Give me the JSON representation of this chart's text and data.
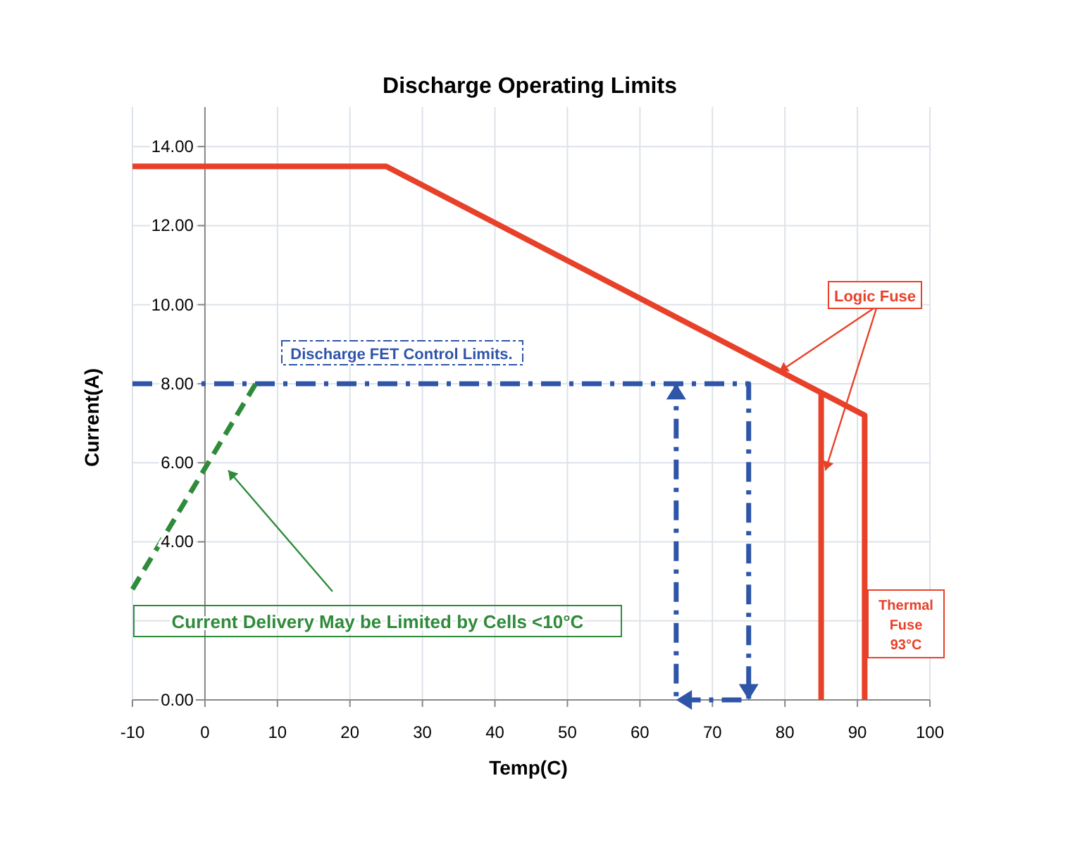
{
  "chart_data": {
    "type": "line",
    "title": "Discharge Operating Limits",
    "xlabel": "Temp(C)",
    "ylabel": "Current(A)",
    "xlim": [
      -10,
      100
    ],
    "xticks": [
      -10,
      0,
      10,
      20,
      30,
      40,
      50,
      60,
      70,
      80,
      90,
      100
    ],
    "ylim": [
      0,
      15
    ],
    "yticks": [
      {
        "value": 0,
        "label": "0.00"
      },
      {
        "value": 2,
        "label": null
      },
      {
        "value": 4,
        "label": "4.00"
      },
      {
        "value": 6,
        "label": "6.00"
      },
      {
        "value": 8,
        "label": "8.00"
      },
      {
        "value": 10,
        "label": "10.00"
      },
      {
        "value": 12,
        "label": "12.00"
      },
      {
        "value": 14,
        "label": "14.00"
      }
    ],
    "grid": true,
    "series": [
      {
        "color": "#e8412a",
        "line_style": "solid",
        "x": [
          -10,
          25,
          91,
          91
        ],
        "values": [
          13.5,
          13.5,
          7.2,
          0
        ]
      },
      {
        "color": "#e8412a",
        "line_style": "solid",
        "x": [
          85,
          85
        ],
        "values": [
          7.75,
          0
        ]
      },
      {
        "color": "#2f55a8",
        "line_style": "dashdot",
        "x": [
          -10,
          75,
          75,
          65,
          65
        ],
        "values": [
          8,
          8,
          0,
          0,
          8
        ]
      },
      {
        "color": "#2e8b3a",
        "line_style": "dashed",
        "x": [
          -10,
          7
        ],
        "values": [
          2.8,
          8
        ]
      }
    ],
    "annotations": [
      "Discharge FET Control Limits.",
      {
        "text": "Logic Fuse",
        "x": 79.2,
        "y": 8.3
      },
      "Thermal Fuse 93°C",
      "Current Delivery May be Limited by Cells <10°C"
    ]
  }
}
